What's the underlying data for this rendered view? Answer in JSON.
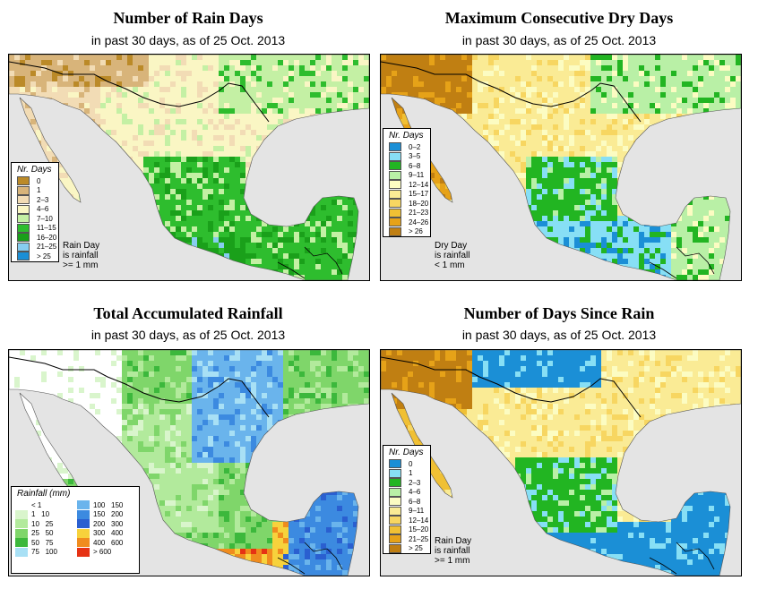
{
  "panels": [
    {
      "title": "Number of Rain Days",
      "subtitle": "in past 30 days, as of  25 Oct. 2013",
      "legend_title": "Nr. Days",
      "legend": [
        {
          "label": "0",
          "color": "#bb8a28"
        },
        {
          "label": "1",
          "color": "#d8b47a"
        },
        {
          "label": "2–3",
          "color": "#f2dcb5"
        },
        {
          "label": "4–6",
          "color": "#faf6c4"
        },
        {
          "label": "7–10",
          "color": "#c4f0a4"
        },
        {
          "label": "11–15",
          "color": "#2ebd2e"
        },
        {
          "label": "16–20",
          "color": "#1aa01a"
        },
        {
          "label": "21–25",
          "color": "#87cdf0"
        },
        {
          "label": "> 25",
          "color": "#1b8fd6"
        }
      ],
      "note": [
        "Rain Day",
        "is rainfall",
        ">= 1 mm"
      ]
    },
    {
      "title": "Maximum Consecutive Dry Days",
      "subtitle": "in past 30 days, as of  25 Oct. 2013",
      "legend_title": "Nr. Days",
      "legend": [
        {
          "label": "0–2",
          "color": "#1b8fd6"
        },
        {
          "label": "3–5",
          "color": "#87dff5"
        },
        {
          "label": "6–8",
          "color": "#22b522"
        },
        {
          "label": "9–11",
          "color": "#b9f0a6"
        },
        {
          "label": "12–14",
          "color": "#fcfcc2"
        },
        {
          "label": "15–17",
          "color": "#faeb95"
        },
        {
          "label": "18–20",
          "color": "#f7d661"
        },
        {
          "label": "21–23",
          "color": "#f0c034"
        },
        {
          "label": "24–26",
          "color": "#e6a218"
        },
        {
          "label": "> 26",
          "color": "#c07f12"
        }
      ],
      "note": [
        "Dry Day",
        "is rainfall",
        "< 1 mm"
      ]
    },
    {
      "title": "Total Accumulated Rainfall",
      "subtitle": "in past 30 days, as of  25 Oct. 2013",
      "legend_title": "Rainfall (mm)",
      "legend": [
        {
          "label": "< 1",
          "color": "#ffffff"
        },
        {
          "label": "1   10",
          "color": "#d9f5cc"
        },
        {
          "label": "10   25",
          "color": "#b2ea9c"
        },
        {
          "label": "25   50",
          "color": "#7fd66a"
        },
        {
          "label": "50   75",
          "color": "#3cb83c"
        },
        {
          "label": "75   100",
          "color": "#a8e0f5"
        },
        {
          "label": "100   150",
          "color": "#6ab4ec"
        },
        {
          "label": "150   200",
          "color": "#3c8ae0"
        },
        {
          "label": "200   300",
          "color": "#2a5fd0"
        },
        {
          "label": "300   400",
          "color": "#f7d23c"
        },
        {
          "label": "400   600",
          "color": "#f08c1e"
        },
        {
          "label": "> 600",
          "color": "#e63214"
        }
      ]
    },
    {
      "title": "Number of Days Since Rain",
      "subtitle": "in past 30 days, as of  25 Oct. 2013",
      "legend_title": "Nr. Days",
      "legend": [
        {
          "label": "0",
          "color": "#1b8fd6"
        },
        {
          "label": "1",
          "color": "#87dff5"
        },
        {
          "label": "2–3",
          "color": "#22b522"
        },
        {
          "label": "4–6",
          "color": "#b9f0a6"
        },
        {
          "label": "6–8",
          "color": "#fcfcc2"
        },
        {
          "label": "9–11",
          "color": "#faeb95"
        },
        {
          "label": "12–14",
          "color": "#f7d661"
        },
        {
          "label": "15–20",
          "color": "#f0c034"
        },
        {
          "label": "21–25",
          "color": "#e6a218"
        },
        {
          "label": "> 25",
          "color": "#c07f12"
        }
      ],
      "note": [
        "Rain Day",
        "is rainfall",
        ">= 1 mm"
      ]
    }
  ],
  "colors": {
    "ocean": "#e4e4e4",
    "border": "#000000"
  }
}
